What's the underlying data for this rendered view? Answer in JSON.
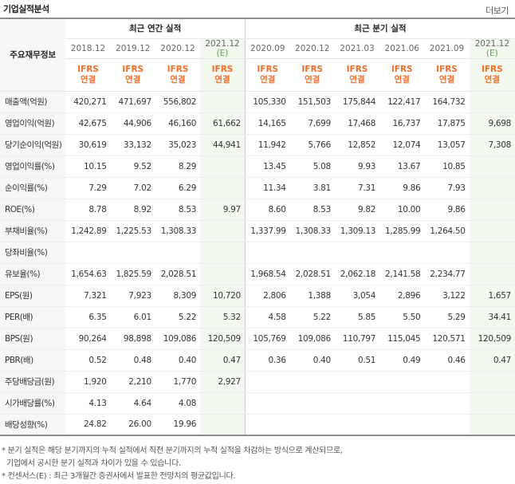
{
  "header": {
    "title": "기업실적분석",
    "more_label": "더보기"
  },
  "table": {
    "corner_label": "주요재무정보",
    "groups": {
      "annual": "최근 연간 실적",
      "quarterly": "최근 분기 실적"
    },
    "periods": [
      {
        "label": "2018.12",
        "estimate": false
      },
      {
        "label": "2019.12",
        "estimate": false
      },
      {
        "label": "2020.12",
        "estimate": false
      },
      {
        "label": "2021.12",
        "est_tag": "(E)",
        "estimate": true
      },
      {
        "label": "2020.09",
        "estimate": false
      },
      {
        "label": "2020.12",
        "estimate": false
      },
      {
        "label": "2021.03",
        "estimate": false
      },
      {
        "label": "2021.06",
        "estimate": false
      },
      {
        "label": "2021.09",
        "estimate": false
      },
      {
        "label": "2021.12",
        "est_tag": "(E)",
        "estimate": true
      }
    ],
    "ifrs_top": "IFRS",
    "ifrs_bottom": "연결",
    "rows": [
      {
        "label": "매출액(억원)",
        "values": [
          "420,271",
          "471,697",
          "556,802",
          "",
          "105,330",
          "151,503",
          "175,844",
          "122,417",
          "164,732",
          ""
        ]
      },
      {
        "label": "영업이익(억원)",
        "values": [
          "42,675",
          "44,906",
          "46,160",
          "61,662",
          "14,165",
          "7,699",
          "17,468",
          "16,737",
          "17,875",
          "9,698"
        ]
      },
      {
        "label": "당기순이익(억원)",
        "values": [
          "30,619",
          "33,132",
          "35,023",
          "44,941",
          "11,942",
          "5,766",
          "12,852",
          "12,074",
          "13,057",
          "7,308"
        ]
      },
      {
        "label": "영업이익률(%)",
        "values": [
          "10.15",
          "9.52",
          "8.29",
          "",
          "13.45",
          "5.08",
          "9.93",
          "13.67",
          "10.85",
          ""
        ]
      },
      {
        "label": "순이익률(%)",
        "values": [
          "7.29",
          "7.02",
          "6.29",
          "",
          "11.34",
          "3.81",
          "7.31",
          "9.86",
          "7.93",
          ""
        ]
      },
      {
        "label": "ROE(%)",
        "values": [
          "8.78",
          "8.92",
          "8.53",
          "9.97",
          "8.60",
          "8.53",
          "9.82",
          "10.00",
          "9.86",
          ""
        ]
      },
      {
        "label": "부채비율(%)",
        "values": [
          "1,242.89",
          "1,225.53",
          "1,308.33",
          "",
          "1,337.99",
          "1,308.33",
          "1,309.13",
          "1,285.99",
          "1,264.50",
          ""
        ]
      },
      {
        "label": "당좌비율(%)",
        "values": [
          "",
          "",
          "",
          "",
          "",
          "",
          "",
          "",
          "",
          ""
        ]
      },
      {
        "label": "유보율(%)",
        "values": [
          "1,654.63",
          "1,825.59",
          "2,028.51",
          "",
          "1,968.54",
          "2,028.51",
          "2,062.18",
          "2,141.58",
          "2,234.77",
          ""
        ]
      },
      {
        "label": "EPS(원)",
        "values": [
          "7,321",
          "7,923",
          "8,309",
          "10,720",
          "2,806",
          "1,388",
          "3,054",
          "2,896",
          "3,122",
          "1,657"
        ]
      },
      {
        "label": "PER(배)",
        "values": [
          "6.35",
          "6.01",
          "5.22",
          "5.32",
          "4.58",
          "5.22",
          "5.85",
          "5.50",
          "5.29",
          "34.41"
        ]
      },
      {
        "label": "BPS(원)",
        "values": [
          "90,264",
          "98,898",
          "109,086",
          "120,509",
          "105,769",
          "109,086",
          "110,797",
          "115,045",
          "120,571",
          "120,509"
        ]
      },
      {
        "label": "PBR(배)",
        "values": [
          "0.52",
          "0.48",
          "0.40",
          "0.47",
          "0.36",
          "0.40",
          "0.51",
          "0.49",
          "0.46",
          "0.47"
        ]
      },
      {
        "label": "주당배당금(원)",
        "values": [
          "1,920",
          "2,210",
          "1,770",
          "2,927",
          "",
          "",
          "",
          "",
          "",
          ""
        ]
      },
      {
        "label": "시가배당률(%)",
        "values": [
          "4.13",
          "4.64",
          "4.08",
          "",
          "",
          "",
          "",
          "",
          "",
          ""
        ]
      },
      {
        "label": "배당성향(%)",
        "values": [
          "24.82",
          "26.00",
          "19.96",
          "",
          "",
          "",
          "",
          "",
          "",
          ""
        ]
      }
    ]
  },
  "notes": [
    "* 분기 실적은 해당 분기까지의 누적 실적에서 직전 분기까지의 누적 실적을 차감하는 방식으로 계산되므로,",
    "  기업에서 공시한 분기 실적과 차이가 있을 수 있습니다.",
    "* 컨센서스(E) : 최근 3개월간 증권사에서 발표한 전망치의 평균값입니다."
  ]
}
